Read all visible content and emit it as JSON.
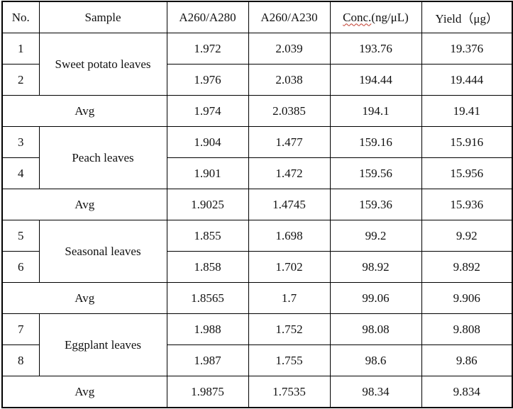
{
  "headers": {
    "no": "No.",
    "sample": "Sample",
    "a260_280": "A260/A280",
    "a260_230": "A260/A230",
    "conc_prefix": "Conc.",
    "conc_unit": "(ng/μL)",
    "yield": "Yield（μg）"
  },
  "groups": [
    {
      "sample": "Sweet potato leaves",
      "rows": [
        {
          "no": "1",
          "a260_280": "1.972",
          "a260_230": "2.039",
          "conc": "193.76",
          "yield": "19.376"
        },
        {
          "no": "2",
          "a260_280": "1.976",
          "a260_230": "2.038",
          "conc": "194.44",
          "yield": "19.444"
        }
      ],
      "avg": {
        "label": "Avg",
        "a260_280": "1.974",
        "a260_230": "2.0385",
        "conc": "194.1",
        "yield": "19.41"
      }
    },
    {
      "sample": "Peach leaves",
      "rows": [
        {
          "no": "3",
          "a260_280": "1.904",
          "a260_230": "1.477",
          "conc": "159.16",
          "yield": "15.916"
        },
        {
          "no": "4",
          "a260_280": "1.901",
          "a260_230": "1.472",
          "conc": "159.56",
          "yield": "15.956"
        }
      ],
      "avg": {
        "label": "Avg",
        "a260_280": "1.9025",
        "a260_230": "1.4745",
        "conc": "159.36",
        "yield": "15.936"
      }
    },
    {
      "sample": "Seasonal leaves",
      "rows": [
        {
          "no": "5",
          "a260_280": "1.855",
          "a260_230": "1.698",
          "conc": "99.2",
          "yield": "9.92"
        },
        {
          "no": "6",
          "a260_280": "1.858",
          "a260_230": "1.702",
          "conc": "98.92",
          "yield": "9.892"
        }
      ],
      "avg": {
        "label": "Avg",
        "a260_280": "1.8565",
        "a260_230": "1.7",
        "conc": "99.06",
        "yield": "9.906"
      }
    },
    {
      "sample": "Eggplant leaves",
      "rows": [
        {
          "no": "7",
          "a260_280": "1.988",
          "a260_230": "1.752",
          "conc": "98.08",
          "yield": "9.808"
        },
        {
          "no": "8",
          "a260_280": "1.987",
          "a260_230": "1.755",
          "conc": "98.6",
          "yield": "9.86"
        }
      ],
      "avg": {
        "label": "Avg",
        "a260_280": "1.9875",
        "a260_230": "1.7535",
        "conc": "98.34",
        "yield": "9.834"
      }
    }
  ]
}
